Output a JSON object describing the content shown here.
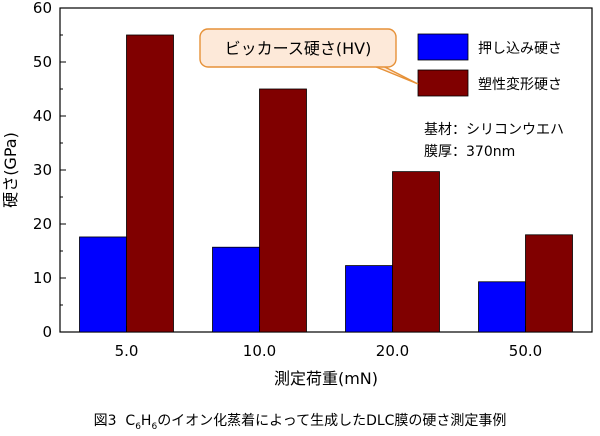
{
  "chart_data": {
    "type": "bar",
    "categories": [
      "5.0",
      "10.0",
      "20.0",
      "50.0"
    ],
    "series": [
      {
        "name": "押し込み硬さ",
        "color": "#0000ff",
        "values": [
          17.6,
          15.7,
          12.3,
          9.3
        ]
      },
      {
        "name": "塑性変形硬さ",
        "color": "#800000",
        "values": [
          55.0,
          45.0,
          29.7,
          18.0
        ]
      }
    ],
    "xlabel": "測定荷重(mN)",
    "ylabel": "硬さ(GPa)",
    "ylim": [
      0,
      60
    ],
    "yticks": [
      "0",
      "10",
      "20",
      "30",
      "40",
      "50",
      "60"
    ],
    "grid": false,
    "legend_position": "top-right",
    "annotations": {
      "callout": "ビッカース硬さ(HV)",
      "substrate": "基材：シリコンウエハ",
      "thickness": "膜厚：370nm"
    }
  },
  "caption": {
    "figure_no": "図3",
    "formula_c": "C",
    "formula_c_sub": "6",
    "formula_h": "H",
    "formula_h_sub": "6",
    "text": "のイオン化蒸着によって生成したDLC膜の硬さ測定事例"
  }
}
